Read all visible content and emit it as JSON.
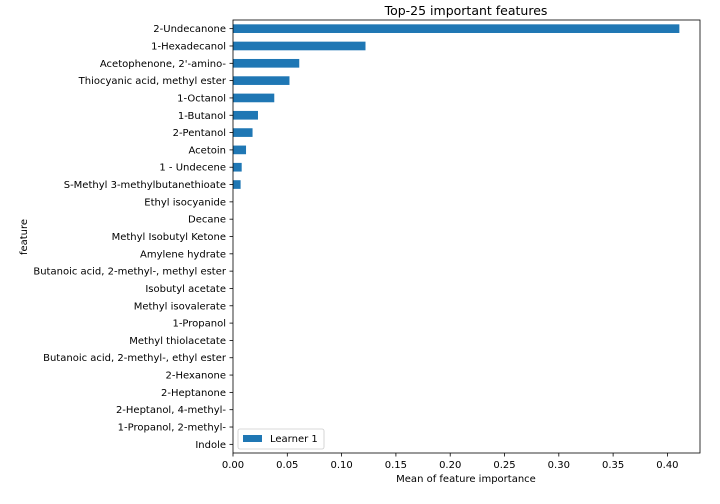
{
  "chart_data": {
    "type": "bar",
    "orientation": "horizontal",
    "title": "Top-25 important features",
    "xlabel": "Mean of feature importance",
    "ylabel": "feature",
    "xlim": [
      0,
      0.43
    ],
    "xticks": [
      0.0,
      0.05,
      0.1,
      0.15,
      0.2,
      0.25,
      0.3,
      0.35,
      0.4
    ],
    "xtick_labels": [
      "0.00",
      "0.05",
      "0.10",
      "0.15",
      "0.20",
      "0.25",
      "0.30",
      "0.35",
      "0.40"
    ],
    "grid": false,
    "legend_position": "lower-left",
    "bar_color": "#1f77b4",
    "categories": [
      "2-Undecanone",
      "1-Hexadecanol",
      "Acetophenone, 2'-amino-",
      "Thiocyanic acid, methyl ester",
      "1-Octanol",
      "1-Butanol",
      "2-Pentanol",
      "Acetoin",
      "1 - Undecene",
      "S-Methyl 3-methylbutanethioate",
      "Ethyl isocyanide",
      "Decane",
      "Methyl Isobutyl Ketone",
      "Amylene hydrate",
      "Butanoic acid, 2-methyl-, methyl ester",
      "Isobutyl acetate",
      "Methyl isovalerate",
      "1-Propanol",
      "Methyl thiolacetate",
      "Butanoic acid, 2-methyl-, ethyl ester",
      "2-Hexanone",
      "2-Heptanone",
      "2-Heptanol, 4-methyl-",
      "1-Propanol, 2-methyl-",
      "Indole"
    ],
    "series": [
      {
        "name": "Learner 1",
        "values": [
          0.411,
          0.122,
          0.061,
          0.052,
          0.038,
          0.023,
          0.018,
          0.012,
          0.008,
          0.007,
          0,
          0,
          0,
          0,
          0,
          0,
          0,
          0,
          0,
          0,
          0,
          0,
          0,
          0,
          0
        ]
      }
    ]
  }
}
